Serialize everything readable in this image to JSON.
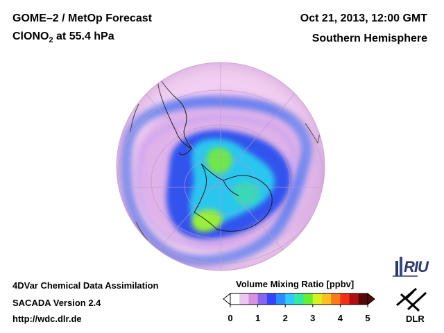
{
  "header": {
    "title_line1": "GOME–2 / MetOp Forecast",
    "title_line2_main": "ClONO",
    "title_line2_sub": "2",
    "title_line2_rest": " at 55.4 hPa",
    "date": "Oct 21, 2013, 12:00 GMT",
    "region": "Southern Hemisphere"
  },
  "footer": {
    "line1": "4DVar Chemical Data Assimilation",
    "line2": "SACADA Version 2.4",
    "line3": "http://wdc.dlr.de"
  },
  "colorbar": {
    "title": "Volume Mixing Ratio [ppbv]",
    "ticks": [
      "0",
      "1",
      "2",
      "3",
      "4",
      "5"
    ],
    "colors": [
      "#ffffff",
      "#e8c8ee",
      "#d890e0",
      "#8866f0",
      "#3344ff",
      "#2a8cff",
      "#30c8ff",
      "#33e8a0",
      "#66ee33",
      "#d8f020",
      "#ffc020",
      "#ff7a18",
      "#f03018",
      "#b01010",
      "#550808"
    ]
  },
  "logos": {
    "riu": "RIU",
    "dlr": "DLR"
  },
  "map_colors": {
    "background": "#f2cdf2",
    "low": "#dcaee6",
    "blue_ring": "#4f78f2",
    "deep_blue": "#2f55ee",
    "cyan": "#2fd0ee",
    "green": "#7ce838",
    "coast": "#1a1a1a"
  }
}
